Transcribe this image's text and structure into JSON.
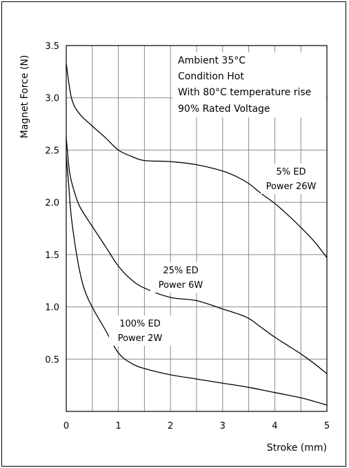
{
  "chart_data": {
    "type": "line",
    "title": "",
    "xlabel": "Stroke (mm)",
    "ylabel": "Magnet Force (N)",
    "xlim": [
      0,
      5
    ],
    "ylim": [
      0,
      3.5
    ],
    "x_ticks": [
      "0",
      "1",
      "2",
      "3",
      "4",
      "5"
    ],
    "y_ticks": [
      "0.5",
      "1.0",
      "1.5",
      "2.0",
      "2.5",
      "3.0",
      "3.5"
    ],
    "grid": true,
    "conditions": [
      "Ambient 35°C",
      "Condition Hot",
      "With 80°C temperature rise",
      "90% Rated Voltage"
    ],
    "series": [
      {
        "label_lines": [
          "5% ED",
          "Power 26W"
        ],
        "x": [
          0,
          0.1,
          0.25,
          0.5,
          0.75,
          1.0,
          1.25,
          1.5,
          2.0,
          2.5,
          3.0,
          3.25,
          3.5,
          3.75,
          4.0,
          4.25,
          4.5,
          4.75,
          5.0
        ],
        "y": [
          3.33,
          3.0,
          2.85,
          2.73,
          2.62,
          2.5,
          2.44,
          2.4,
          2.39,
          2.36,
          2.3,
          2.25,
          2.18,
          2.08,
          1.99,
          1.88,
          1.76,
          1.63,
          1.47
        ]
      },
      {
        "label_lines": [
          "25% ED",
          "Power 6W"
        ],
        "x": [
          0,
          0.05,
          0.1,
          0.25,
          0.5,
          0.75,
          1.0,
          1.25,
          1.5,
          2.0,
          2.5,
          3.0,
          3.25,
          3.5,
          3.75,
          4.0,
          4.25,
          4.5,
          4.75,
          5.0
        ],
        "y": [
          2.62,
          2.35,
          2.2,
          1.97,
          1.77,
          1.58,
          1.39,
          1.26,
          1.18,
          1.09,
          1.06,
          0.98,
          0.94,
          0.89,
          0.8,
          0.71,
          0.63,
          0.55,
          0.46,
          0.36
        ]
      },
      {
        "label_lines": [
          "100% ED",
          "Power 2W"
        ],
        "x": [
          0,
          0.05,
          0.1,
          0.2,
          0.3,
          0.4,
          0.55,
          0.75,
          1.0,
          1.25,
          1.5,
          2.0,
          2.5,
          3.0,
          3.5,
          4.0,
          4.5,
          5.0
        ],
        "y": [
          2.45,
          2.15,
          1.85,
          1.5,
          1.25,
          1.1,
          0.95,
          0.78,
          0.56,
          0.46,
          0.41,
          0.35,
          0.31,
          0.27,
          0.23,
          0.18,
          0.13,
          0.06
        ]
      }
    ]
  }
}
